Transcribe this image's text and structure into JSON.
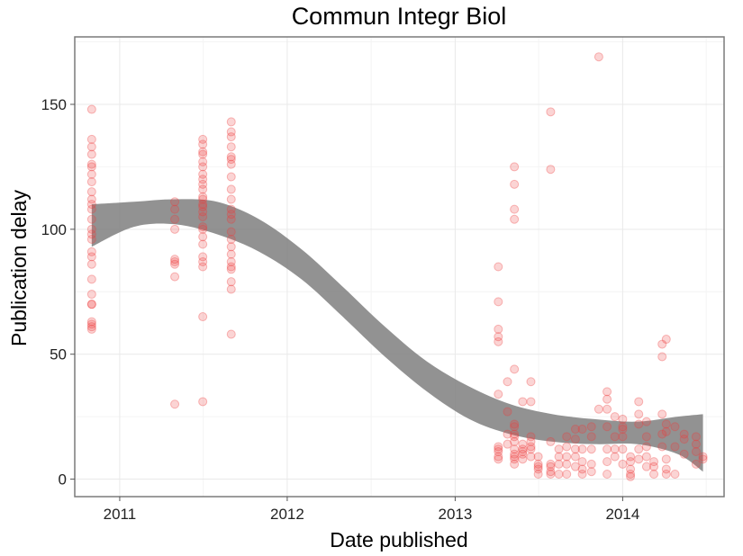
{
  "chart_data": {
    "type": "scatter",
    "title": "Commun Integr Biol",
    "xlabel": "Date published",
    "ylabel": "Publication delay",
    "x_ticks": [
      "2011",
      "2012",
      "2013",
      "2014"
    ],
    "y_ticks": [
      0,
      50,
      100,
      150
    ],
    "xlim": [
      "2010-09-25",
      "2014-08-10"
    ],
    "ylim": [
      -7,
      177
    ],
    "grid": true,
    "point_color": "#ef3b3b",
    "band_color": "#7f7f7f",
    "series": [
      {
        "type": "points",
        "x": [
          "2010-11-01",
          "2010-11-01",
          "2010-11-01",
          "2010-11-01",
          "2010-11-01",
          "2010-11-01",
          "2010-11-01",
          "2010-11-01",
          "2010-11-01",
          "2010-11-01",
          "2010-11-01",
          "2010-11-01",
          "2010-11-01",
          "2010-11-01",
          "2010-11-01",
          "2010-11-01",
          "2010-11-01",
          "2010-11-01",
          "2010-11-01",
          "2010-11-01",
          "2010-11-01",
          "2010-11-01",
          "2010-11-01",
          "2010-11-01",
          "2010-11-01",
          "2010-11-01",
          "2010-11-01",
          "2011-05-01",
          "2011-05-01",
          "2011-05-01",
          "2011-05-01",
          "2011-05-01",
          "2011-05-01",
          "2011-05-01",
          "2011-05-01",
          "2011-05-01",
          "2011-07-01",
          "2011-07-01",
          "2011-07-01",
          "2011-07-01",
          "2011-07-01",
          "2011-07-01",
          "2011-07-01",
          "2011-07-01",
          "2011-07-01",
          "2011-07-01",
          "2011-07-01",
          "2011-07-01",
          "2011-07-01",
          "2011-07-01",
          "2011-07-01",
          "2011-07-01",
          "2011-07-01",
          "2011-07-01",
          "2011-07-01",
          "2011-07-01",
          "2011-07-01",
          "2011-07-01",
          "2011-07-01",
          "2011-07-01",
          "2011-07-01",
          "2011-09-01",
          "2011-09-01",
          "2011-09-01",
          "2011-09-01",
          "2011-09-01",
          "2011-09-01",
          "2011-09-01",
          "2011-09-01",
          "2011-09-01",
          "2011-09-01",
          "2011-09-01",
          "2011-09-01",
          "2011-09-01",
          "2011-09-01",
          "2011-09-01",
          "2011-09-01",
          "2011-09-01",
          "2011-09-01",
          "2011-09-01",
          "2011-09-01",
          "2011-09-01",
          "2011-09-01",
          "2011-09-01",
          "2013-04-05",
          "2013-04-05",
          "2013-04-05",
          "2013-04-05",
          "2013-04-05",
          "2013-04-05",
          "2013-04-05",
          "2013-04-05",
          "2013-04-05",
          "2013-04-05",
          "2013-04-05",
          "2013-04-25",
          "2013-04-25",
          "2013-04-25",
          "2013-04-25",
          "2013-05-10",
          "2013-05-10",
          "2013-05-10",
          "2013-05-10",
          "2013-05-10",
          "2013-05-10",
          "2013-05-10",
          "2013-05-10",
          "2013-05-10",
          "2013-05-10",
          "2013-05-10",
          "2013-05-10",
          "2013-05-10",
          "2013-05-10",
          "2013-05-10",
          "2013-05-28",
          "2013-05-28",
          "2013-05-28",
          "2013-05-28",
          "2013-05-28",
          "2013-05-28",
          "2013-06-15",
          "2013-06-15",
          "2013-06-15",
          "2013-06-15",
          "2013-06-15",
          "2013-06-15",
          "2013-06-15",
          "2013-07-01",
          "2013-07-01",
          "2013-07-01",
          "2013-07-01",
          "2013-07-01",
          "2013-07-28",
          "2013-07-28",
          "2013-07-28",
          "2013-07-28",
          "2013-07-28",
          "2013-07-28",
          "2013-07-28",
          "2013-08-15",
          "2013-08-15",
          "2013-08-15",
          "2013-08-15",
          "2013-09-01",
          "2013-09-01",
          "2013-09-01",
          "2013-09-01",
          "2013-09-01",
          "2013-09-20",
          "2013-09-20",
          "2013-09-20",
          "2013-09-20",
          "2013-09-20",
          "2013-10-05",
          "2013-10-05",
          "2013-10-05",
          "2013-10-05",
          "2013-10-05",
          "2013-10-25",
          "2013-10-25",
          "2013-10-25",
          "2013-10-25",
          "2013-10-25",
          "2013-11-10",
          "2013-11-10",
          "2013-11-28",
          "2013-11-28",
          "2013-11-28",
          "2013-11-28",
          "2013-11-28",
          "2013-11-28",
          "2013-11-28",
          "2013-12-15",
          "2013-12-15",
          "2013-12-15",
          "2013-12-15",
          "2014-01-01",
          "2014-01-01",
          "2014-01-01",
          "2014-01-01",
          "2014-01-01",
          "2014-01-01",
          "2014-01-18",
          "2014-01-18",
          "2014-01-18",
          "2014-01-18",
          "2014-01-18",
          "2014-02-05",
          "2014-02-05",
          "2014-02-05",
          "2014-02-05",
          "2014-02-05",
          "2014-02-22",
          "2014-02-22",
          "2014-02-22",
          "2014-02-22",
          "2014-02-22",
          "2014-03-10",
          "2014-03-10",
          "2014-03-10",
          "2014-03-28",
          "2014-03-28",
          "2014-03-28",
          "2014-03-28",
          "2014-03-28",
          "2014-04-06",
          "2014-04-06",
          "2014-04-06",
          "2014-04-06",
          "2014-04-06",
          "2014-04-06",
          "2014-04-25",
          "2014-04-25",
          "2014-04-25",
          "2014-05-15",
          "2014-05-15",
          "2014-05-15",
          "2014-06-10",
          "2014-06-10",
          "2014-06-10",
          "2014-06-10",
          "2014-06-25",
          "2014-06-25"
        ],
        "y": [
          148,
          136,
          133,
          130,
          126,
          125,
          122,
          119,
          115,
          112,
          110,
          108,
          104,
          100,
          98,
          96,
          91,
          89,
          86,
          80,
          74,
          70,
          63,
          62,
          61,
          60,
          70,
          111,
          108,
          104,
          100,
          88,
          87,
          86,
          81,
          30,
          136,
          134,
          131,
          130,
          127,
          125,
          122,
          118,
          113,
          112,
          110,
          109,
          107,
          105,
          101,
          100,
          97,
          94,
          89,
          87,
          85,
          65,
          31,
          120,
          116,
          143,
          139,
          137,
          133,
          129,
          128,
          126,
          121,
          116,
          112,
          108,
          106,
          104,
          99,
          96,
          93,
          90,
          87,
          85,
          84,
          79,
          58,
          76,
          85,
          71,
          60,
          57,
          55,
          34,
          13,
          12,
          11,
          9,
          8,
          39,
          27,
          18,
          14,
          125,
          118,
          108,
          104,
          44,
          22,
          21,
          18,
          17,
          15,
          12,
          10,
          9,
          8,
          6,
          31,
          14,
          12,
          11,
          10,
          8,
          39,
          31,
          17,
          15,
          13,
          12,
          9,
          9,
          6,
          5,
          4,
          2,
          147,
          124,
          15,
          6,
          5,
          3,
          2,
          12,
          9,
          6,
          2,
          17,
          13,
          9,
          6,
          2,
          20,
          16,
          12,
          9,
          5,
          20,
          12,
          7,
          4,
          2,
          21,
          17,
          12,
          6,
          3,
          169,
          28,
          35,
          32,
          28,
          21,
          12,
          7,
          2,
          25,
          17,
          12,
          9,
          24,
          21,
          20,
          17,
          12,
          6,
          9,
          7,
          4,
          2,
          1,
          31,
          26,
          22,
          12,
          8,
          23,
          17,
          13,
          9,
          5,
          7,
          5,
          2,
          54,
          49,
          26,
          18,
          13,
          56,
          22,
          19,
          8,
          4,
          2,
          21,
          13,
          2,
          18,
          16,
          10,
          17,
          14,
          11,
          6,
          9,
          8
        ]
      },
      {
        "type": "smooth",
        "x": [
          "2010-11-01",
          "2011-02-01",
          "2011-05-01",
          "2011-08-01",
          "2011-11-01",
          "2012-02-01",
          "2012-05-01",
          "2012-08-01",
          "2012-11-01",
          "2013-02-01",
          "2013-05-01",
          "2013-08-01",
          "2013-11-01",
          "2014-02-01",
          "2014-05-01",
          "2014-06-25"
        ],
        "y_upper": [
          110,
          111,
          112,
          111,
          104,
          92,
          77,
          61,
          47,
          37,
          30,
          26,
          24,
          23,
          25,
          26
        ],
        "y_lower": [
          93,
          101,
          102,
          98,
          91,
          80,
          65,
          49,
          35,
          24,
          18,
          15,
          14,
          14,
          10,
          3
        ]
      }
    ]
  }
}
